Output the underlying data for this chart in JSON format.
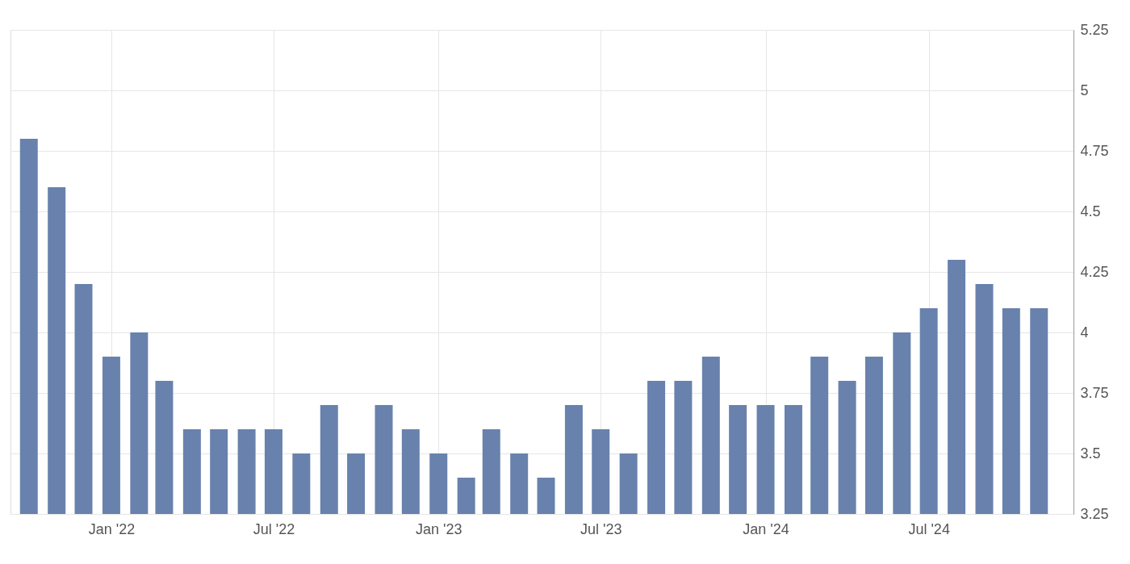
{
  "chart_data": {
    "type": "bar",
    "x": [
      "2021-10",
      "2021-11",
      "2021-12",
      "2022-01",
      "2022-02",
      "2022-03",
      "2022-04",
      "2022-05",
      "2022-06",
      "2022-07",
      "2022-08",
      "2022-09",
      "2022-10",
      "2022-11",
      "2022-12",
      "2023-01",
      "2023-02",
      "2023-03",
      "2023-04",
      "2023-05",
      "2023-06",
      "2023-07",
      "2023-08",
      "2023-09",
      "2023-10",
      "2023-11",
      "2023-12",
      "2024-01",
      "2024-02",
      "2024-03",
      "2024-04",
      "2024-05",
      "2024-06",
      "2024-07",
      "2024-08",
      "2024-09",
      "2024-10",
      "2024-11"
    ],
    "values": [
      4.8,
      4.6,
      4.2,
      3.9,
      4.0,
      3.8,
      3.6,
      3.6,
      3.6,
      3.6,
      3.5,
      3.7,
      3.5,
      3.7,
      3.6,
      3.5,
      3.4,
      3.6,
      3.5,
      3.4,
      3.7,
      3.6,
      3.5,
      3.8,
      3.8,
      3.9,
      3.7,
      3.7,
      3.7,
      3.9,
      3.8,
      3.9,
      4.0,
      4.1,
      4.3,
      4.2,
      4.1,
      4.1
    ],
    "color": "#6882ad",
    "xlim": [
      "2021-09-15",
      "2024-12-05"
    ],
    "xticks": [
      {
        "value": "2022-01",
        "label": "Jan '22"
      },
      {
        "value": "2022-07",
        "label": "Jul '22"
      },
      {
        "value": "2023-01",
        "label": "Jan '23"
      },
      {
        "value": "2023-07",
        "label": "Jul '23"
      },
      {
        "value": "2024-01",
        "label": "Jan '24"
      },
      {
        "value": "2024-07",
        "label": "Jul '24"
      }
    ],
    "ylim": [
      3.25,
      5.25
    ],
    "yticks": [
      3.25,
      3.5,
      3.75,
      4,
      4.25,
      4.5,
      4.75,
      5,
      5.25
    ],
    "grid": true
  }
}
